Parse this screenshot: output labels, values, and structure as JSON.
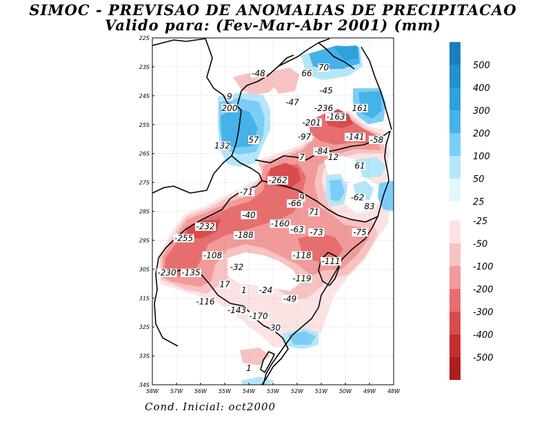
{
  "title": {
    "line1": "SIMOC - PREVISAO DE ANOMALIAS DE PRECIPITACAO",
    "line2": "Valido para: (Fev-Mar-Abr 2001) (mm)"
  },
  "footer": "Cond. Inicial: oct2000",
  "map": {
    "lon_range": [
      -58,
      -48
    ],
    "lat_range": [
      -34,
      -22
    ],
    "lat_ticks": [
      "22S",
      "23S",
      "24S",
      "25S",
      "26S",
      "27S",
      "28S",
      "29S",
      "30S",
      "31S",
      "32S",
      "33S",
      "34S"
    ],
    "lon_ticks": [
      "58W",
      "57W",
      "56W",
      "55W",
      "54W",
      "53W",
      "52W",
      "51W",
      "50W",
      "49W",
      "48W"
    ]
  },
  "contour_labels": [
    {
      "text": "-48",
      "lon": -53.6,
      "lat": -23.3
    },
    {
      "text": "66",
      "lon": -51.6,
      "lat": -23.3
    },
    {
      "text": "70",
      "lon": -50.9,
      "lat": -23.1
    },
    {
      "text": "-45",
      "lon": -50.8,
      "lat": -23.9
    },
    {
      "text": "9",
      "lon": -54.8,
      "lat": -24.1
    },
    {
      "text": "200",
      "lon": -54.8,
      "lat": -24.5
    },
    {
      "text": "-47",
      "lon": -52.2,
      "lat": -24.3
    },
    {
      "text": "-236",
      "lon": -50.9,
      "lat": -24.5
    },
    {
      "text": "161",
      "lon": -49.4,
      "lat": -24.5
    },
    {
      "text": "-163",
      "lon": -50.4,
      "lat": -24.8
    },
    {
      "text": "-201",
      "lon": -51.4,
      "lat": -25.0
    },
    {
      "text": "-97",
      "lon": -51.7,
      "lat": -25.5
    },
    {
      "text": "57",
      "lon": -53.8,
      "lat": -25.6
    },
    {
      "text": "-141",
      "lon": -49.6,
      "lat": -25.5
    },
    {
      "text": "-58",
      "lon": -48.7,
      "lat": -25.6
    },
    {
      "text": "132",
      "lon": -55.1,
      "lat": -25.8
    },
    {
      "text": "-84",
      "lon": -51.0,
      "lat": -26.0
    },
    {
      "text": "7",
      "lon": -51.8,
      "lat": -26.2
    },
    {
      "text": "12",
      "lon": -50.5,
      "lat": -26.2
    },
    {
      "text": "61",
      "lon": -49.4,
      "lat": -26.5
    },
    {
      "text": "-262",
      "lon": -52.8,
      "lat": -27.0
    },
    {
      "text": "-71",
      "lon": -54.1,
      "lat": -27.4
    },
    {
      "text": "9",
      "lon": -51.8,
      "lat": -27.6
    },
    {
      "text": "-62",
      "lon": -49.5,
      "lat": -27.6
    },
    {
      "text": "-66",
      "lon": -52.1,
      "lat": -27.8
    },
    {
      "text": "83",
      "lon": -49.0,
      "lat": -27.9
    },
    {
      "text": "71",
      "lon": -51.3,
      "lat": -28.1
    },
    {
      "text": "-40",
      "lon": -54.0,
      "lat": -28.2
    },
    {
      "text": "-232",
      "lon": -55.8,
      "lat": -28.6
    },
    {
      "text": "-160",
      "lon": -52.7,
      "lat": -28.5
    },
    {
      "text": "-63",
      "lon": -52.0,
      "lat": -28.7
    },
    {
      "text": "-73",
      "lon": -51.2,
      "lat": -28.8
    },
    {
      "text": "-75",
      "lon": -49.4,
      "lat": -28.8
    },
    {
      "text": "-255",
      "lon": -56.7,
      "lat": -29.0
    },
    {
      "text": "-188",
      "lon": -54.2,
      "lat": -28.9
    },
    {
      "text": "-108",
      "lon": -55.5,
      "lat": -29.6
    },
    {
      "text": "-118",
      "lon": -51.8,
      "lat": -29.6
    },
    {
      "text": "-111",
      "lon": -50.6,
      "lat": -29.8
    },
    {
      "text": "-32",
      "lon": -54.5,
      "lat": -30.0
    },
    {
      "text": "-230",
      "lon": -57.4,
      "lat": -30.2
    },
    {
      "text": "-135",
      "lon": -56.4,
      "lat": -30.2
    },
    {
      "text": "-119",
      "lon": -51.8,
      "lat": -30.4
    },
    {
      "text": "17",
      "lon": -55.0,
      "lat": -30.6
    },
    {
      "text": "1",
      "lon": -54.2,
      "lat": -30.8
    },
    {
      "text": "-24",
      "lon": -53.3,
      "lat": -30.8
    },
    {
      "text": "-49",
      "lon": -52.3,
      "lat": -31.1
    },
    {
      "text": "-116",
      "lon": -55.8,
      "lat": -31.2
    },
    {
      "text": "-143",
      "lon": -54.5,
      "lat": -31.5
    },
    {
      "text": "-170",
      "lon": -53.6,
      "lat": -31.7
    },
    {
      "text": "30",
      "lon": -52.9,
      "lat": -32.1
    },
    {
      "text": "1",
      "lon": -54.0,
      "lat": -33.5
    }
  ],
  "legend": {
    "entries": [
      {
        "label": "500",
        "color": "#1a7dbd"
      },
      {
        "label": "400",
        "color": "#2490cf"
      },
      {
        "label": "300",
        "color": "#2fa1dd"
      },
      {
        "label": "200",
        "color": "#45b2ea"
      },
      {
        "label": "100",
        "color": "#7ccdf6"
      },
      {
        "label": "50",
        "color": "#b4e6fa"
      },
      {
        "label": "25",
        "color": "#e2f8fc"
      },
      {
        "label": "-25",
        "color": "#fce3e3"
      },
      {
        "label": "-50",
        "color": "#f8c2c2"
      },
      {
        "label": "-100",
        "color": "#f19a9a"
      },
      {
        "label": "-200",
        "color": "#e76e6e"
      },
      {
        "label": "-300",
        "color": "#d84b4b"
      },
      {
        "label": "-400",
        "color": "#c52f2f"
      },
      {
        "label": "-500",
        "color": "#ad1f1f"
      }
    ]
  },
  "colors": {
    "neg_light": "#fce3e3",
    "neg_50": "#f8c2c2",
    "neg_100": "#f19a9a",
    "neg_200": "#e76e6e",
    "neg_300": "#d84b4b",
    "pos_light": "#e2f8fc",
    "pos_50": "#b4e6fa",
    "pos_100": "#7ccdf6",
    "pos_200": "#45b2ea",
    "pos_300": "#2fa1dd"
  }
}
